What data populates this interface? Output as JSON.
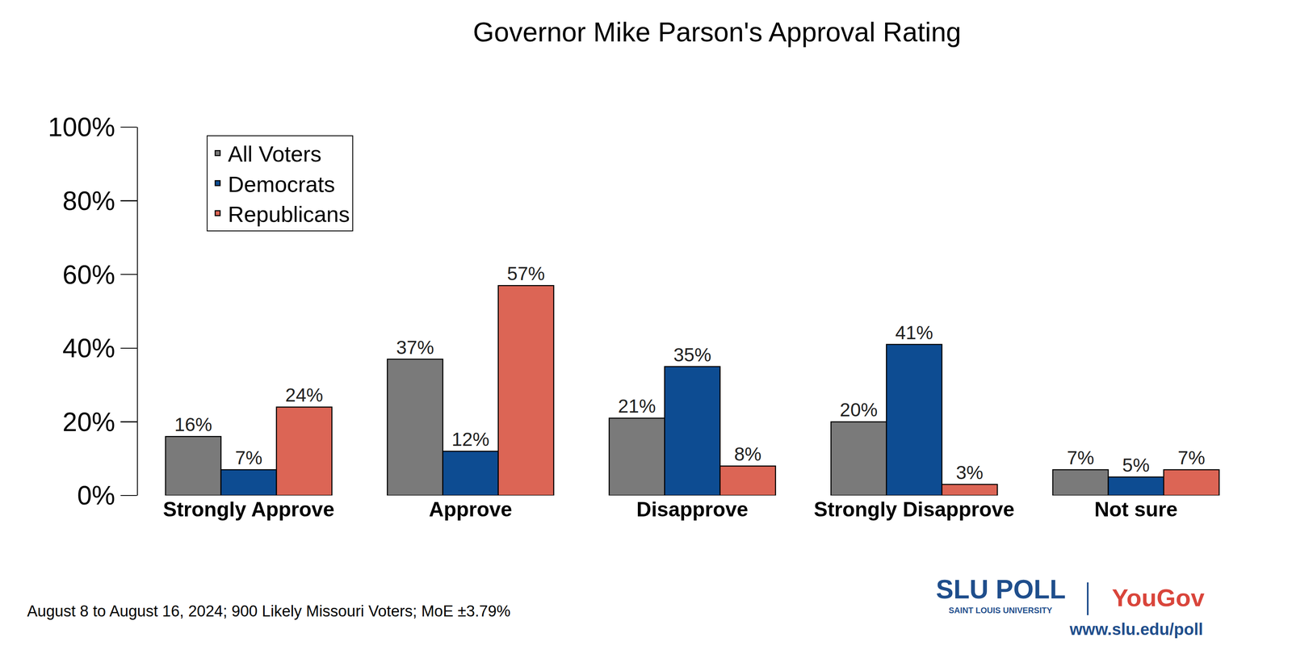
{
  "chart_data": {
    "type": "bar",
    "title": "Governor Mike Parson's Approval Rating",
    "categories": [
      "Strongly Approve",
      "Approve",
      "Disapprove",
      "Strongly Disapprove",
      "Not sure"
    ],
    "series": [
      {
        "name": "All Voters",
        "color": "#7a7a7a",
        "values": [
          16,
          37,
          21,
          20,
          7
        ],
        "value_labels": [
          "16%",
          "37%",
          "21%",
          "20%",
          "7%"
        ]
      },
      {
        "name": "Democrats",
        "color": "#0d4c92",
        "values": [
          7,
          12,
          35,
          41,
          5
        ],
        "value_labels": [
          "7%",
          "12%",
          "35%",
          "41%",
          "5%"
        ]
      },
      {
        "name": "Republicans",
        "color": "#dc6555",
        "values": [
          24,
          57,
          8,
          3,
          7
        ],
        "value_labels": [
          "24%",
          "57%",
          "8%",
          "3%",
          "7%"
        ]
      }
    ],
    "ylim": [
      0,
      100
    ],
    "yticks": [
      {
        "value": 0,
        "label": "0%"
      },
      {
        "value": 20,
        "label": "20%"
      },
      {
        "value": 40,
        "label": "40%"
      },
      {
        "value": 60,
        "label": "60%"
      },
      {
        "value": 80,
        "label": "80%"
      },
      {
        "value": 100,
        "label": "100%"
      }
    ],
    "grid": false,
    "legend": "top left",
    "data_labels": true,
    "annotations": [
      "August 8 to August 16, 2024; 900 Likely Missouri Voters; MoE ±3.79%",
      "SLU POLL",
      "SAINT LOUIS UNIVERSITY",
      "YouGov",
      "www.slu.edu/poll"
    ]
  }
}
